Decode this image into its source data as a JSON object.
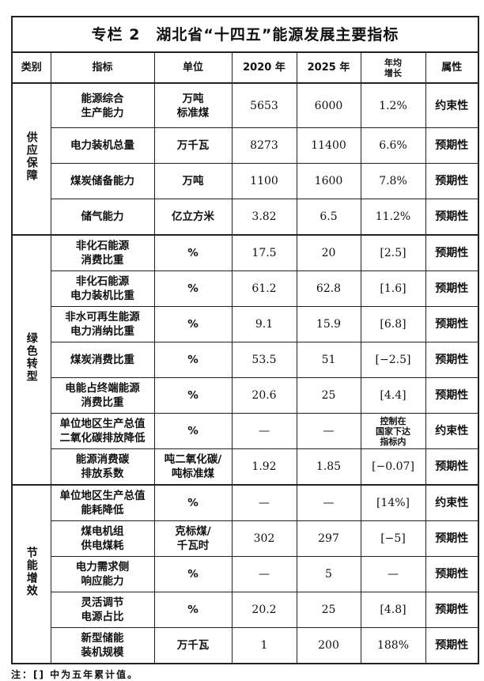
{
  "title": "专栏 2　湖北省“十四五”能源发展主要指标",
  "headers": [
    "类别",
    "指标",
    "单位",
    "2020 年",
    "2025 年",
    "年均\n增长",
    "属性"
  ],
  "sections": [
    {
      "category": "供应保障",
      "rows": [
        {
          "indicator": "能源综合\n生产能力",
          "unit": "万吨\n标准煤",
          "y2020": "5653",
          "y2025": "6000",
          "growth": "1.2%",
          "attribute": "约束性"
        },
        {
          "indicator": "电力装机总量",
          "unit": "万千瓦",
          "y2020": "8273",
          "y2025": "11400",
          "growth": "6.6%",
          "attribute": "预期性"
        },
        {
          "indicator": "煤炭储备能力",
          "unit": "万吨",
          "y2020": "1100",
          "y2025": "1600",
          "growth": "7.8%",
          "attribute": "预期性"
        },
        {
          "indicator": "储气能力",
          "unit": "亿立方米",
          "y2020": "3.82",
          "y2025": "6.5",
          "growth": "11.2%",
          "attribute": "预期性"
        }
      ]
    },
    {
      "category": "绿色转型",
      "rows": [
        {
          "indicator": "非化石能源\n消费比重",
          "unit": "%",
          "y2020": "17.5",
          "y2025": "20",
          "growth": "[2.5]",
          "attribute": "预期性"
        },
        {
          "indicator": "非化石能源\n电力装机比重",
          "unit": "%",
          "y2020": "61.2",
          "y2025": "62.8",
          "growth": "[1.6]",
          "attribute": "预期性"
        },
        {
          "indicator": "非水可再生能源\n电力消纳比重",
          "unit": "%",
          "y2020": "9.1",
          "y2025": "15.9",
          "growth": "[6.8]",
          "attribute": "预期性"
        },
        {
          "indicator": "煤炭消费比重",
          "unit": "%",
          "y2020": "53.5",
          "y2025": "51",
          "growth": "[−2.5]",
          "attribute": "预期性"
        },
        {
          "indicator": "电能占终端能源\n消费比重",
          "unit": "%",
          "y2020": "20.6",
          "y2025": "25",
          "growth": "[4.4]",
          "attribute": "预期性"
        },
        {
          "indicator": "单位地区生产总值\n二氧化碳排放降低",
          "unit": "%",
          "y2020": "—",
          "y2025": "—",
          "growth": "控制在\n国家下达\n指标内",
          "attribute": "约束性"
        },
        {
          "indicator": "能源消费碳\n排放系数",
          "unit": "吨二氧化碳/\n吨标准煤",
          "y2020": "1.92",
          "y2025": "1.85",
          "growth": "[−0.07]",
          "attribute": "预期性"
        }
      ]
    },
    {
      "category": "节能增效",
      "rows": [
        {
          "indicator": "单位地区生产总值\n能耗降低",
          "unit": "%",
          "y2020": "—",
          "y2025": "—",
          "growth": "[14%]",
          "attribute": "约束性"
        },
        {
          "indicator": "煤电机组\n供电煤耗",
          "unit": "克标煤/\n千瓦时",
          "y2020": "302",
          "y2025": "297",
          "growth": "[−5]",
          "attribute": "预期性"
        },
        {
          "indicator": "电力需求侧\n响应能力",
          "unit": "%",
          "y2020": "—",
          "y2025": "5",
          "growth": "—",
          "attribute": "预期性"
        },
        {
          "indicator": "灵活调节\n电源占比",
          "unit": "%",
          "y2020": "20.2",
          "y2025": "25",
          "growth": "[4.8]",
          "attribute": "预期性"
        },
        {
          "indicator": "新型储能\n装机规模",
          "unit": "万千瓦",
          "y2020": "1",
          "y2025": "200",
          "growth": "188%",
          "attribute": "预期性"
        }
      ]
    }
  ],
  "footnote": "注：[] 中为五年累计值。"
}
